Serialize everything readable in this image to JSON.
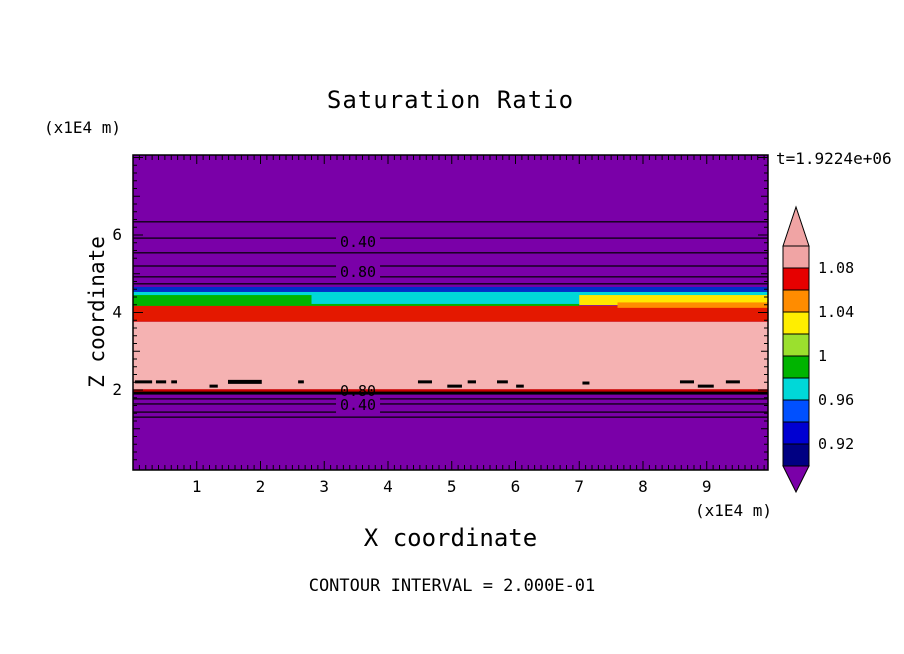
{
  "header": {
    "title": "Saturation Ratio",
    "y_axis_unit": "(x1E4 m)",
    "time_label": "t=1.9224e+06"
  },
  "axes": {
    "x_label": "X coordinate",
    "y_label": "Z coordinate",
    "x_unit": "(x1E4 m)"
  },
  "footer": {
    "contour_interval_note": "CONTOUR INTERVAL = 2.000E-01"
  },
  "colorbar": {
    "labels": [
      "1.08",
      "1.04",
      "1",
      "0.96",
      "0.92"
    ],
    "segments_top_to_bottom": [
      "#f0a4a4",
      "#e60000",
      "#ff8c00",
      "#ffee00",
      "#9be02e",
      "#00b400",
      "#00d8d8",
      "#0050ff",
      "#0000d2",
      "#000082"
    ],
    "cap_top_color": "#f0a4a4",
    "cap_bottom_color": "#7a00a8"
  },
  "chart_data": {
    "type": "heatmap",
    "title": "Saturation Ratio",
    "xlabel": "X coordinate",
    "ylabel": "Z coordinate",
    "x_unit": "x1E4 m",
    "y_unit": "x1E4 m",
    "time": "t=1.9224e+06",
    "contour_interval": 0.2,
    "xlim": [
      0,
      9.96
    ],
    "ylim": [
      0,
      8.06
    ],
    "x_ticks": [
      1,
      2,
      3,
      4,
      5,
      6,
      7,
      8,
      9
    ],
    "y_ticks": [
      2,
      4,
      6
    ],
    "colorbar_ticks": [
      1.08,
      1.04,
      1.0,
      0.96,
      0.92
    ],
    "background_color": "#7a00a8",
    "background_value": "saturation < 0.90 (purple zones above z=4.7 and below z=1.9)",
    "fill_bands": [
      {
        "x0": 0,
        "x1": 9.96,
        "z0": 4.53,
        "z1": 4.66,
        "color": "#0030c8",
        "value": "0.92-0.94"
      },
      {
        "x0": 0,
        "x1": 9.96,
        "z0": 4.22,
        "z1": 4.53,
        "color": "#00d8d8",
        "value": "0.96-0.98"
      },
      {
        "x0": 0,
        "x1": 2.8,
        "z0": 4.16,
        "z1": 4.45,
        "color": "#00b400",
        "value": "0.98-1.00"
      },
      {
        "x0": 0,
        "x1": 7.0,
        "z0": 4.16,
        "z1": 4.22,
        "color": "#00b400",
        "value": "0.98-1.00"
      },
      {
        "x0": 7.0,
        "x1": 9.96,
        "z0": 4.19,
        "z1": 4.45,
        "color": "#ffe800",
        "value": "1.02-1.04"
      },
      {
        "x0": 0,
        "x1": 9.96,
        "z0": 3.76,
        "z1": 4.17,
        "color": "#e41800",
        "value": "1.06-1.08"
      },
      {
        "x0": 7.6,
        "x1": 9.96,
        "z0": 4.12,
        "z1": 4.26,
        "color": "#ff8c00",
        "value": "1.04-1.06"
      },
      {
        "x0": 0,
        "x1": 9.96,
        "z0": 1.95,
        "z1": 3.76,
        "color": "#f5b2b2",
        "value": "> 1.08"
      },
      {
        "x0": 0,
        "x1": 9.96,
        "z0": 1.93,
        "z1": 2.02,
        "color": "#c80000",
        "value": "1.06-1.08"
      }
    ],
    "contour_lines": [
      {
        "z": 6.34
      },
      {
        "z": 5.92
      },
      {
        "z": 5.54
      },
      {
        "z": 5.2
      },
      {
        "z": 4.92
      },
      {
        "z": 4.74
      },
      {
        "z": 1.92,
        "w": 3
      },
      {
        "z": 1.77
      },
      {
        "z": 1.64
      },
      {
        "z": 1.43
      },
      {
        "z": 1.3
      }
    ],
    "contour_labels": [
      {
        "text": "0.40",
        "x": 3.53,
        "z": 5.82,
        "bg": true
      },
      {
        "text": "0.80",
        "x": 3.53,
        "z": 5.05,
        "bg": true
      },
      {
        "text": "0.80",
        "x": 3.53,
        "z": 1.97,
        "bg": false
      },
      {
        "text": "0.40",
        "x": 3.53,
        "z": 1.61,
        "bg": true
      }
    ],
    "dashes": [
      {
        "x0": 0.03,
        "x1": 0.3,
        "z": 2.21
      },
      {
        "x0": 0.36,
        "x1": 0.52,
        "z": 2.21
      },
      {
        "x0": 0.6,
        "x1": 0.69,
        "z": 2.21
      },
      {
        "x0": 1.2,
        "x1": 1.33,
        "z": 2.1
      },
      {
        "x0": 1.49,
        "x1": 2.02,
        "z": 2.21,
        "h": 4
      },
      {
        "x0": 2.59,
        "x1": 2.68,
        "z": 2.21
      },
      {
        "x0": 4.47,
        "x1": 4.69,
        "z": 2.21
      },
      {
        "x0": 4.93,
        "x1": 5.16,
        "z": 2.1
      },
      {
        "x0": 5.25,
        "x1": 5.38,
        "z": 2.21
      },
      {
        "x0": 5.71,
        "x1": 5.88,
        "z": 2.21
      },
      {
        "x0": 6.01,
        "x1": 6.13,
        "z": 2.1
      },
      {
        "x0": 7.05,
        "x1": 7.16,
        "z": 2.18
      },
      {
        "x0": 8.58,
        "x1": 8.8,
        "z": 2.21
      },
      {
        "x0": 8.86,
        "x1": 9.11,
        "z": 2.1
      },
      {
        "x0": 9.3,
        "x1": 9.52,
        "z": 2.21
      }
    ]
  }
}
